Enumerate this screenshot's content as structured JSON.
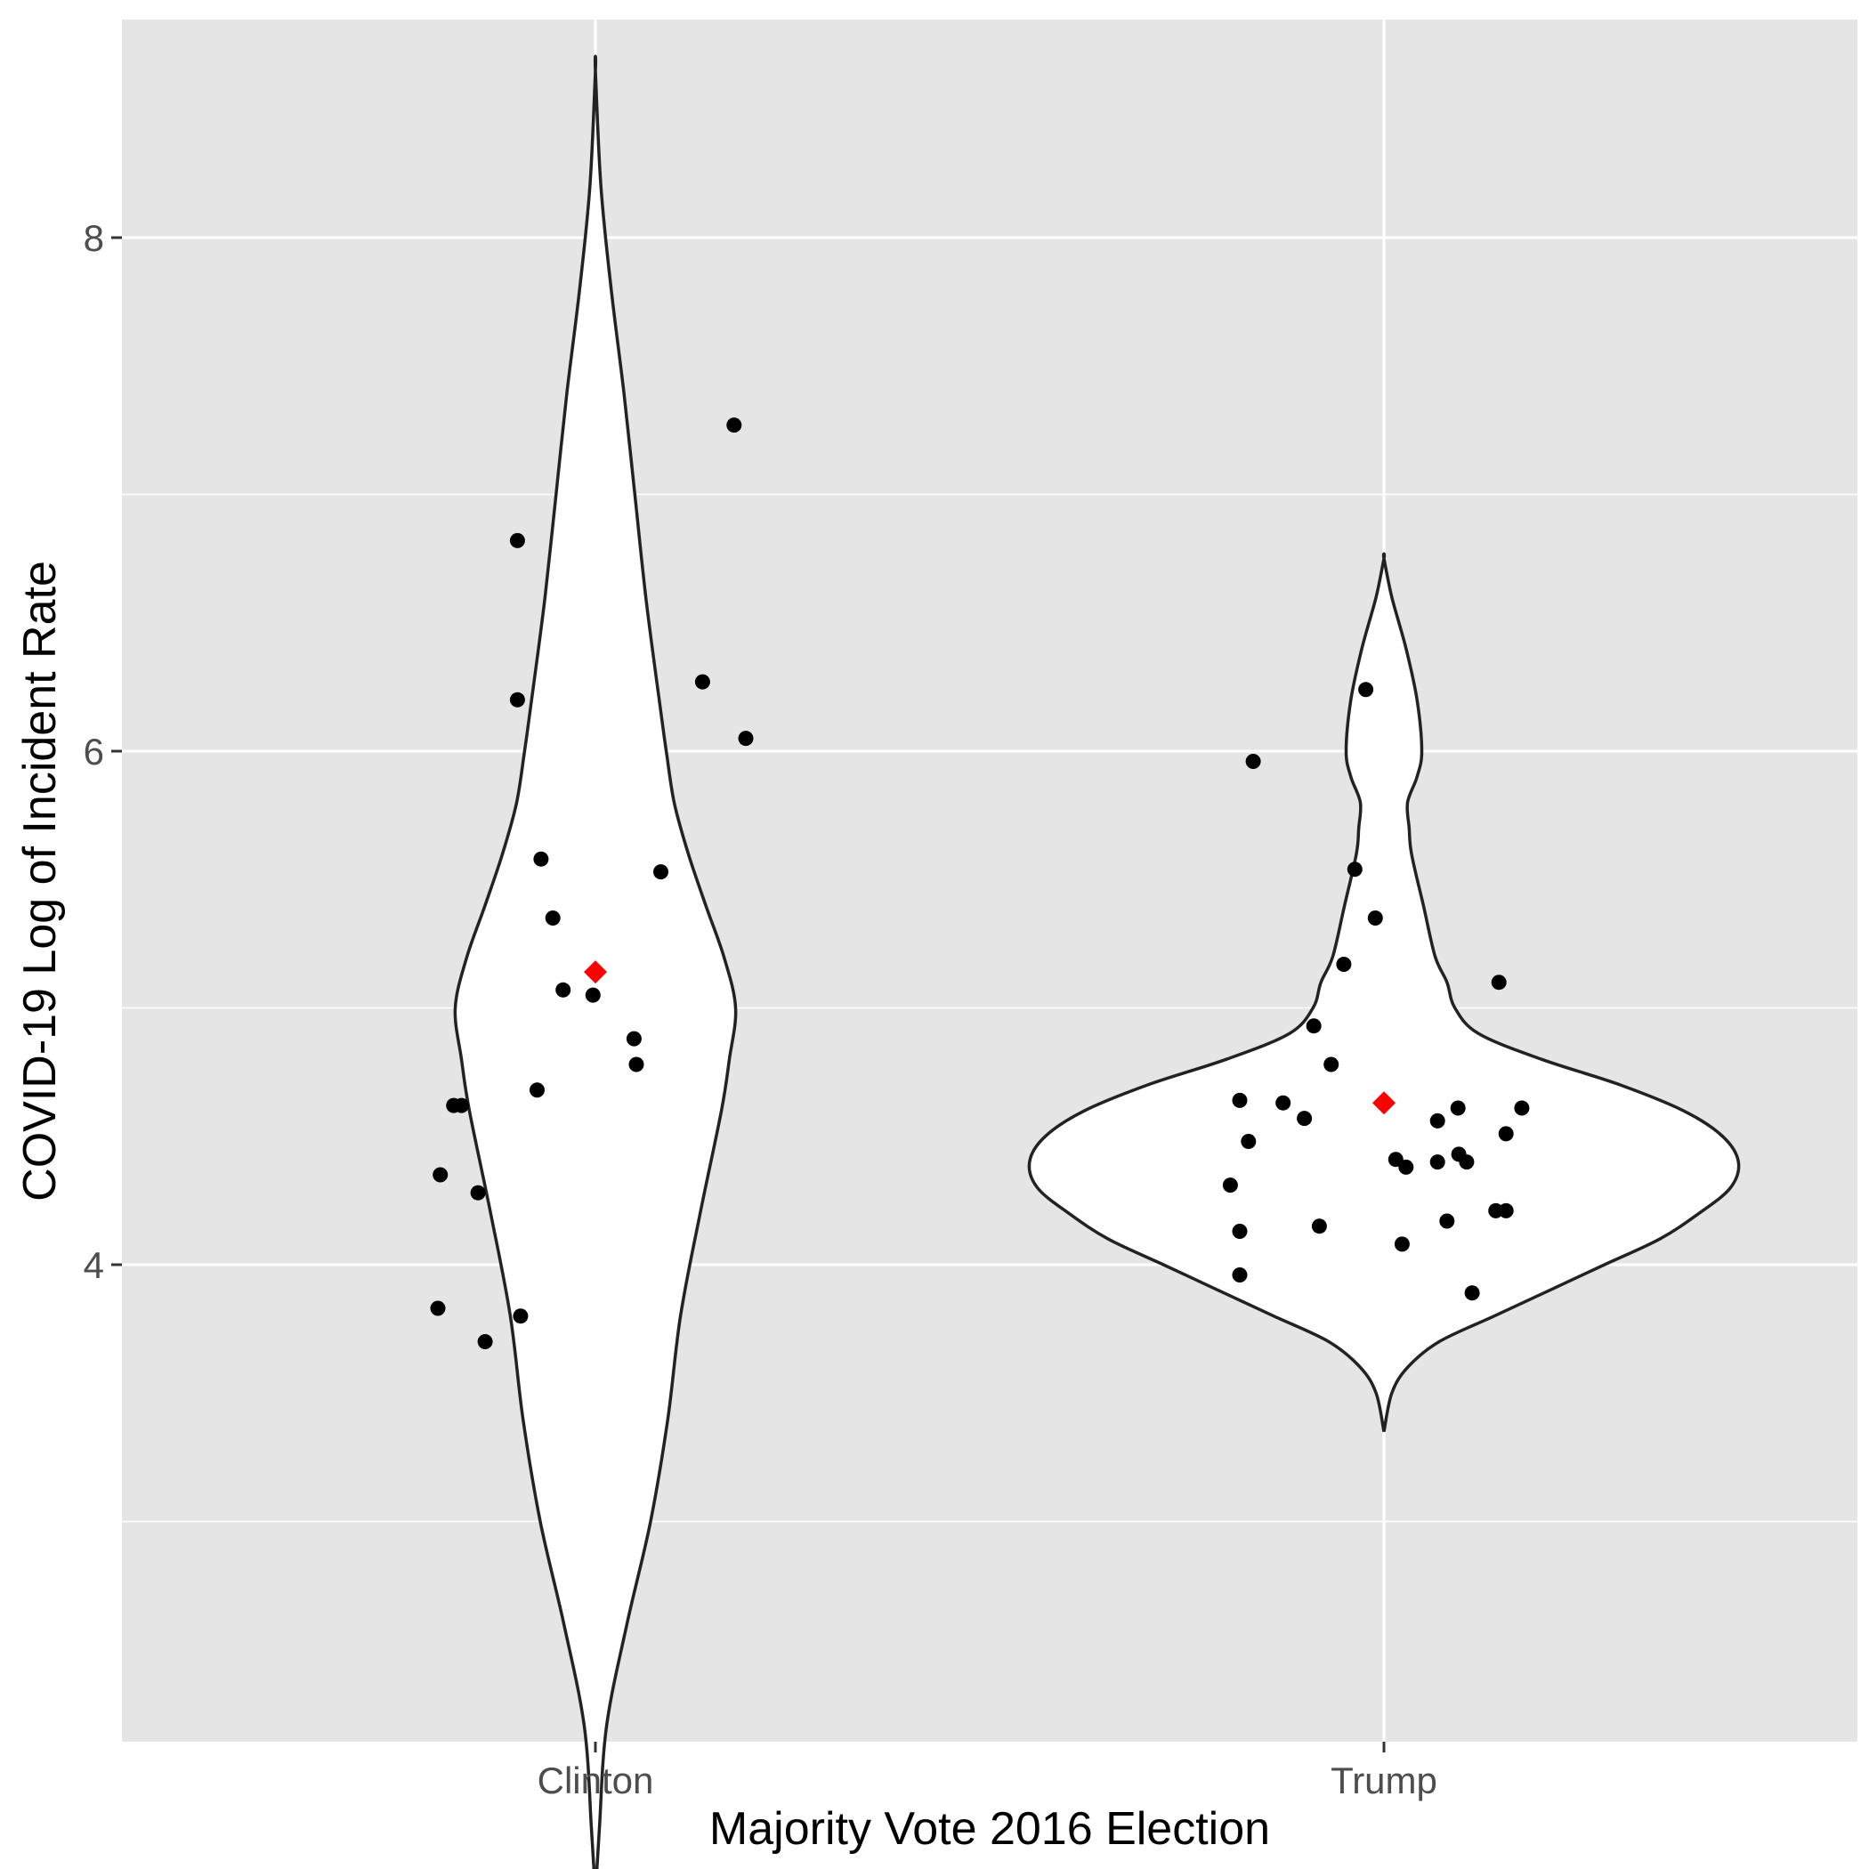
{
  "chart_data": {
    "type": "violin",
    "title": "",
    "xlabel": "Majority Vote 2016 Election",
    "ylabel": "COVID-19 Log of Incident Rate",
    "categories": [
      "Clinton",
      "Trump"
    ],
    "ylim": [
      1.4,
      9.0
    ],
    "yticks": [
      4,
      6,
      8
    ],
    "ytick_labels": [
      "4",
      "6",
      "8"
    ],
    "grid": true,
    "legend": "none",
    "colors": {
      "panel": "#e5e5e5",
      "grid": "#ffffff",
      "violin_fill": "#ffffff",
      "violin_outline": "#222222",
      "point": "#000000",
      "mean_marker": "#ff0000"
    },
    "violins": [
      {
        "category": "Clinton",
        "min": 1.55,
        "max": 8.65,
        "mean": 5.14,
        "max_halfwidth": 0.18,
        "profile": [
          [
            1.55,
            0.0
          ],
          [
            1.8,
            0.005
          ],
          [
            2.2,
            0.014
          ],
          [
            2.6,
            0.04
          ],
          [
            3.0,
            0.07
          ],
          [
            3.4,
            0.092
          ],
          [
            3.8,
            0.108
          ],
          [
            4.2,
            0.133
          ],
          [
            4.6,
            0.16
          ],
          [
            4.8,
            0.17
          ],
          [
            5.0,
            0.178
          ],
          [
            5.2,
            0.163
          ],
          [
            5.4,
            0.14
          ],
          [
            5.6,
            0.118
          ],
          [
            5.8,
            0.1
          ],
          [
            6.0,
            0.09
          ],
          [
            6.2,
            0.081
          ],
          [
            6.6,
            0.064
          ],
          [
            7.0,
            0.05
          ],
          [
            7.4,
            0.036
          ],
          [
            7.8,
            0.02
          ],
          [
            8.2,
            0.007
          ],
          [
            8.65,
            0.0
          ]
        ],
        "points": [
          [
            -0.2,
            3.83
          ],
          [
            -0.14,
            3.7
          ],
          [
            -0.095,
            3.8
          ],
          [
            -0.197,
            4.35
          ],
          [
            -0.18,
            4.62
          ],
          [
            -0.17,
            4.62
          ],
          [
            -0.149,
            4.28
          ],
          [
            -0.074,
            4.68
          ],
          [
            -0.099,
            6.2
          ],
          [
            -0.099,
            6.82
          ],
          [
            -0.069,
            5.58
          ],
          [
            -0.054,
            5.35
          ],
          [
            -0.041,
            5.07
          ],
          [
            -0.003,
            5.05
          ],
          [
            0.049,
            4.88
          ],
          [
            0.052,
            4.78
          ],
          [
            0.083,
            5.53
          ],
          [
            0.136,
            6.27
          ],
          [
            0.176,
            7.27
          ],
          [
            0.191,
            6.05
          ]
        ]
      },
      {
        "category": "Trump",
        "min": 3.35,
        "max": 6.75,
        "mean": 4.63,
        "max_halfwidth": 0.45,
        "profile": [
          [
            3.35,
            0.0
          ],
          [
            3.5,
            0.01
          ],
          [
            3.6,
            0.03
          ],
          [
            3.7,
            0.07
          ],
          [
            3.8,
            0.14
          ],
          [
            3.9,
            0.21
          ],
          [
            4.0,
            0.28
          ],
          [
            4.1,
            0.35
          ],
          [
            4.2,
            0.4
          ],
          [
            4.3,
            0.44
          ],
          [
            4.4,
            0.45
          ],
          [
            4.5,
            0.43
          ],
          [
            4.6,
            0.38
          ],
          [
            4.7,
            0.3
          ],
          [
            4.8,
            0.2
          ],
          [
            4.9,
            0.12
          ],
          [
            5.0,
            0.09
          ],
          [
            5.1,
            0.08
          ],
          [
            5.2,
            0.065
          ],
          [
            5.4,
            0.05
          ],
          [
            5.6,
            0.035
          ],
          [
            5.7,
            0.032
          ],
          [
            5.8,
            0.03
          ],
          [
            5.9,
            0.042
          ],
          [
            6.0,
            0.048
          ],
          [
            6.2,
            0.042
          ],
          [
            6.4,
            0.028
          ],
          [
            6.6,
            0.01
          ],
          [
            6.75,
            0.0
          ]
        ],
        "points": [
          [
            -0.195,
            4.31
          ],
          [
            -0.183,
            4.13
          ],
          [
            -0.183,
            3.96
          ],
          [
            -0.183,
            4.64
          ],
          [
            -0.172,
            4.48
          ],
          [
            -0.128,
            4.63
          ],
          [
            -0.101,
            4.57
          ],
          [
            -0.082,
            4.15
          ],
          [
            -0.089,
            4.93
          ],
          [
            -0.067,
            4.78
          ],
          [
            -0.051,
            5.17
          ],
          [
            -0.037,
            5.54
          ],
          [
            -0.023,
            6.24
          ],
          [
            -0.166,
            5.96
          ],
          [
            -0.011,
            5.35
          ],
          [
            0.015,
            4.41
          ],
          [
            0.023,
            4.08
          ],
          [
            0.028,
            4.38
          ],
          [
            0.068,
            4.56
          ],
          [
            0.068,
            4.4
          ],
          [
            0.08,
            4.17
          ],
          [
            0.094,
            4.61
          ],
          [
            0.095,
            4.43
          ],
          [
            0.105,
            4.4
          ],
          [
            0.112,
            3.89
          ],
          [
            0.146,
            5.1
          ],
          [
            0.142,
            4.21
          ],
          [
            0.155,
            4.21
          ],
          [
            0.155,
            4.51
          ],
          [
            0.175,
            4.61
          ]
        ]
      }
    ]
  }
}
